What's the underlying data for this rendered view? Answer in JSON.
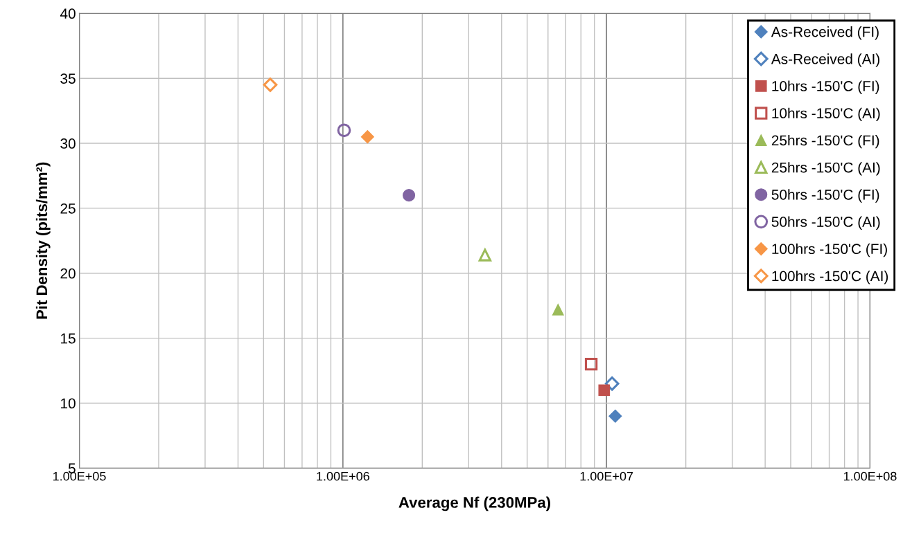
{
  "chart_data": {
    "type": "scatter",
    "xlabel": "Average Nf (230MPa)",
    "ylabel": "Pit Density (pits/mm²)",
    "log": "x",
    "xlim": [
      100000,
      100000000
    ],
    "xticks": [
      {
        "value": 100000,
        "label": "1.00E+05"
      },
      {
        "value": 1000000,
        "label": "1.00E+06"
      },
      {
        "value": 10000000,
        "label": "1.00E+07"
      },
      {
        "value": 100000000,
        "label": "1.00E+08"
      }
    ],
    "ylim": [
      5,
      40
    ],
    "yticks": [
      5,
      10,
      15,
      20,
      25,
      30,
      35,
      40
    ],
    "grid": true,
    "legend": "right",
    "series": [
      {
        "name": "As-Received (FI)",
        "color": "#4f81bd",
        "marker": "diamond",
        "x": [
          10800000
        ],
        "values": [
          9
        ]
      },
      {
        "name": "As-Received (AI)",
        "color": "#4f81bd",
        "marker": "diamond",
        "x": [
          10500000
        ],
        "values": [
          11.5
        ]
      },
      {
        "name": "10hrs -150'C (FI)",
        "color": "#c0504d",
        "marker": "square",
        "x": [
          9800000
        ],
        "values": [
          11
        ]
      },
      {
        "name": "10hrs -150'C (AI)",
        "color": "#c0504d",
        "marker": "square",
        "x": [
          8750000
        ],
        "values": [
          13
        ]
      },
      {
        "name": "25hrs -150'C (FI)",
        "color": "#9bbb59",
        "marker": "triangle",
        "x": [
          6550000
        ],
        "values": [
          17.2
        ]
      },
      {
        "name": "25hrs -150'C (AI)",
        "color": "#9bbb59",
        "marker": "triangle",
        "x": [
          3460000
        ],
        "values": [
          21.4
        ]
      },
      {
        "name": "50hrs -150'C (FI)",
        "color": "#8064a2",
        "marker": "circle",
        "x": [
          1780000
        ],
        "values": [
          26
        ]
      },
      {
        "name": "50hrs -150'C (AI)",
        "color": "#8064a2",
        "marker": "circle",
        "x": [
          1010000
        ],
        "values": [
          31
        ]
      },
      {
        "name": "100hrs -150'C (FI)",
        "color": "#f79646",
        "marker": "diamond",
        "x": [
          1240000
        ],
        "values": [
          30.5
        ]
      },
      {
        "name": "100hrs -150'C (AI)",
        "color": "#f79646",
        "marker": "diamond",
        "x": [
          530000
        ],
        "values": [
          34.5
        ]
      }
    ]
  }
}
